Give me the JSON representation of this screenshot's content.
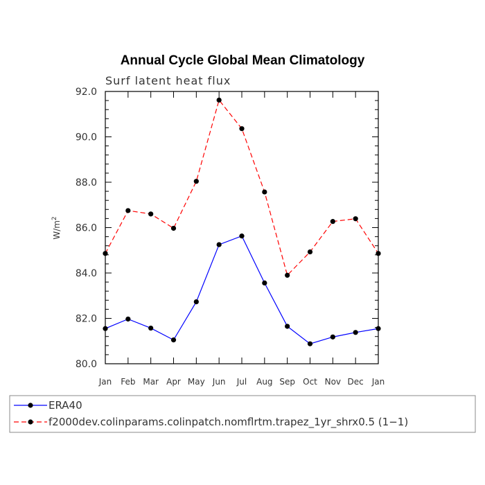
{
  "chart_data": {
    "type": "line",
    "title": "Annual Cycle Global Mean Climatology",
    "subtitle": "Surf latent heat flux",
    "ylabel": "W/m",
    "ylabel_superscript": "2",
    "xlabel": "",
    "categories": [
      "Jan",
      "Feb",
      "Mar",
      "Apr",
      "May",
      "Jun",
      "Jul",
      "Aug",
      "Sep",
      "Oct",
      "Nov",
      "Dec",
      "Jan"
    ],
    "ylim": [
      80.0,
      92.0
    ],
    "yticks": [
      "80.0",
      "82.0",
      "84.0",
      "86.0",
      "88.0",
      "90.0",
      "92.0"
    ],
    "grid": false,
    "legend_position": "bottom",
    "series": [
      {
        "name": "ERA40",
        "color": "#0000ff",
        "line_style": "solid",
        "values": [
          81.55,
          81.97,
          81.57,
          81.05,
          82.73,
          85.25,
          85.63,
          83.56,
          81.65,
          80.88,
          81.18,
          81.38,
          81.55
        ]
      },
      {
        "name": "f2000dev.colinparams.colinpatch.nomflrtm.trapez_1yr_shrx0.5 (1−1)",
        "color": "#ff0000",
        "line_style": "dashed",
        "values": [
          84.86,
          86.75,
          86.6,
          85.97,
          88.04,
          91.62,
          90.36,
          87.57,
          83.9,
          84.93,
          86.27,
          86.39,
          84.86
        ]
      }
    ]
  }
}
